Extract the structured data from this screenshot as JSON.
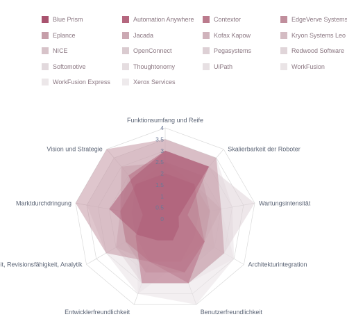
{
  "chart_data": {
    "type": "radar",
    "title": "",
    "axes": [
      "Funktionsumfang und Reife",
      "Skalierbarkeit der Roboter",
      "Wartungsintensität",
      "Architekturintegration",
      "Benutzerfreundlichkeit",
      "Entwicklerfreundlichkeit",
      "Sicherheit, Revisionsfähigkeit, Analytik",
      "Marktdurchdringung",
      "Vision und Strategie"
    ],
    "r_range": [
      0,
      4
    ],
    "ticks": [
      "0",
      "0.5",
      "1",
      "1.5",
      "2",
      "2.5",
      "3",
      "3.5",
      "4"
    ],
    "grid": true,
    "legend_position": "top",
    "series": [
      {
        "name": "Blue Prism",
        "color": "#a9536f",
        "values": [
          3.0,
          3.0,
          0.6,
          0.7,
          1.0,
          1.0,
          1.4,
          2.5,
          2.3
        ]
      },
      {
        "name": "Automation Anywhere",
        "color": "#b5677f",
        "values": [
          3.0,
          3.0,
          1.0,
          2.0,
          3.0,
          3.0,
          1.5,
          1.0,
          2.5
        ]
      },
      {
        "name": "Contextor",
        "color": "#bb7b8d",
        "values": [
          2.0,
          2.0,
          1.5,
          2.0,
          2.5,
          2.0,
          2.0,
          2.0,
          2.0
        ]
      },
      {
        "name": "EdgeVerve Systems",
        "color": "#c08e9c",
        "values": [
          3.5,
          3.5,
          2.5,
          3.0,
          3.0,
          2.0,
          3.0,
          4.0,
          4.0
        ]
      },
      {
        "name": "Eplance",
        "color": "#c69ea9",
        "values": [
          2.0,
          2.0,
          1.5,
          1.5,
          2.0,
          2.0,
          1.5,
          1.5,
          2.0
        ]
      },
      {
        "name": "Jacada",
        "color": "#cba9b3",
        "values": [
          2.5,
          2.5,
          2.0,
          2.0,
          2.5,
          2.5,
          2.0,
          2.0,
          3.0
        ]
      },
      {
        "name": "Kofax Kapow",
        "color": "#d0b3bc",
        "values": [
          2.0,
          2.0,
          2.0,
          2.0,
          2.0,
          2.0,
          2.0,
          2.0,
          2.0
        ]
      },
      {
        "name": "Kryon Systems Leo",
        "color": "#d4bcc3",
        "values": [
          2.5,
          2.0,
          2.0,
          1.5,
          2.0,
          2.0,
          2.0,
          2.0,
          2.0
        ]
      },
      {
        "name": "NICE",
        "color": "#d7c3c9",
        "values": [
          2.0,
          2.0,
          2.5,
          2.0,
          2.0,
          2.0,
          2.5,
          2.0,
          2.0
        ]
      },
      {
        "name": "OpenConnect",
        "color": "#dacbd0",
        "values": [
          1.5,
          1.5,
          1.5,
          1.5,
          1.5,
          1.5,
          1.5,
          1.5,
          1.5
        ]
      },
      {
        "name": "Pegasystems",
        "color": "#ddd0d5",
        "values": [
          3.0,
          3.0,
          4.0,
          3.0,
          3.0,
          3.0,
          2.5,
          2.0,
          2.5
        ]
      },
      {
        "name": "Redwood Software",
        "color": "#e0d5d9",
        "values": [
          1.5,
          2.0,
          2.0,
          2.0,
          2.0,
          2.0,
          2.0,
          1.5,
          2.0
        ]
      },
      {
        "name": "Softomotive",
        "color": "#e2d9dd",
        "values": [
          1.5,
          2.0,
          2.0,
          2.5,
          2.5,
          2.0,
          2.0,
          2.0,
          1.5
        ]
      },
      {
        "name": "Thoughtonomy",
        "color": "#e5dde0",
        "values": [
          2.0,
          2.0,
          2.0,
          2.5,
          2.0,
          2.0,
          2.0,
          2.0,
          2.0
        ]
      },
      {
        "name": "UiPath",
        "color": "#e7e0e3",
        "values": [
          3.5,
          3.5,
          3.0,
          3.5,
          4.0,
          3.5,
          3.0,
          3.5,
          3.5
        ]
      },
      {
        "name": "WorkFusion",
        "color": "#eae4e6",
        "values": [
          2.0,
          2.5,
          2.5,
          3.5,
          3.0,
          3.0,
          2.0,
          2.0,
          2.5
        ]
      },
      {
        "name": "WorkFusion Express",
        "color": "#ece7e9",
        "values": [
          1.5,
          1.5,
          2.0,
          2.0,
          2.0,
          3.5,
          1.5,
          1.5,
          1.5
        ]
      },
      {
        "name": "Xerox Services",
        "color": "#eeeaec",
        "values": [
          1.5,
          1.5,
          1.0,
          1.5,
          1.0,
          1.0,
          1.0,
          1.0,
          1.5
        ]
      }
    ]
  }
}
